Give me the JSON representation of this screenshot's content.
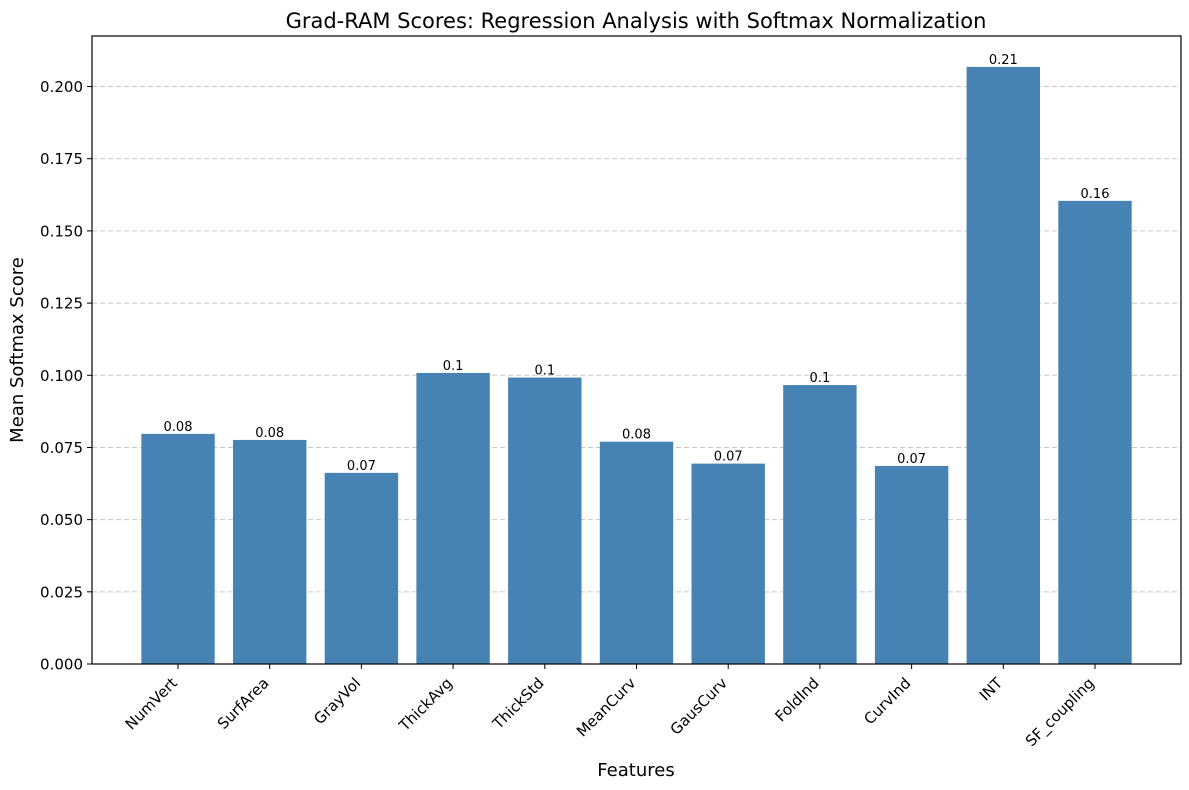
{
  "chart_data": {
    "type": "bar",
    "title": "Grad-RAM Scores: Regression Analysis with Softmax Normalization",
    "xlabel": "Features",
    "ylabel": "Mean Softmax Score",
    "categories": [
      "NumVert",
      "SurfArea",
      "GrayVol",
      "ThickAvg",
      "ThickStd",
      "MeanCurv",
      "GausCurv",
      "FoldInd",
      "CurvInd",
      "INT",
      "SF_coupling"
    ],
    "values": [
      0.0797,
      0.0776,
      0.0662,
      0.1008,
      0.0992,
      0.077,
      0.0694,
      0.0966,
      0.0686,
      0.2068,
      0.1604
    ],
    "value_labels": [
      "0.08",
      "0.08",
      "0.07",
      "0.1",
      "0.1",
      "0.08",
      "0.07",
      "0.1",
      "0.07",
      "0.21",
      "0.16"
    ],
    "ylim": [
      0,
      0.2175
    ],
    "yticks": [
      0,
      0.025,
      0.05,
      0.075,
      0.1,
      0.125,
      0.15,
      0.175,
      0.2
    ],
    "ytick_labels": [
      "0.000",
      "0.025",
      "0.050",
      "0.075",
      "0.100",
      "0.125",
      "0.150",
      "0.175",
      "0.200"
    ],
    "grid": "horizontal dashed",
    "bar_color": "#4682b4",
    "grid_color": "#c8c8c8"
  }
}
